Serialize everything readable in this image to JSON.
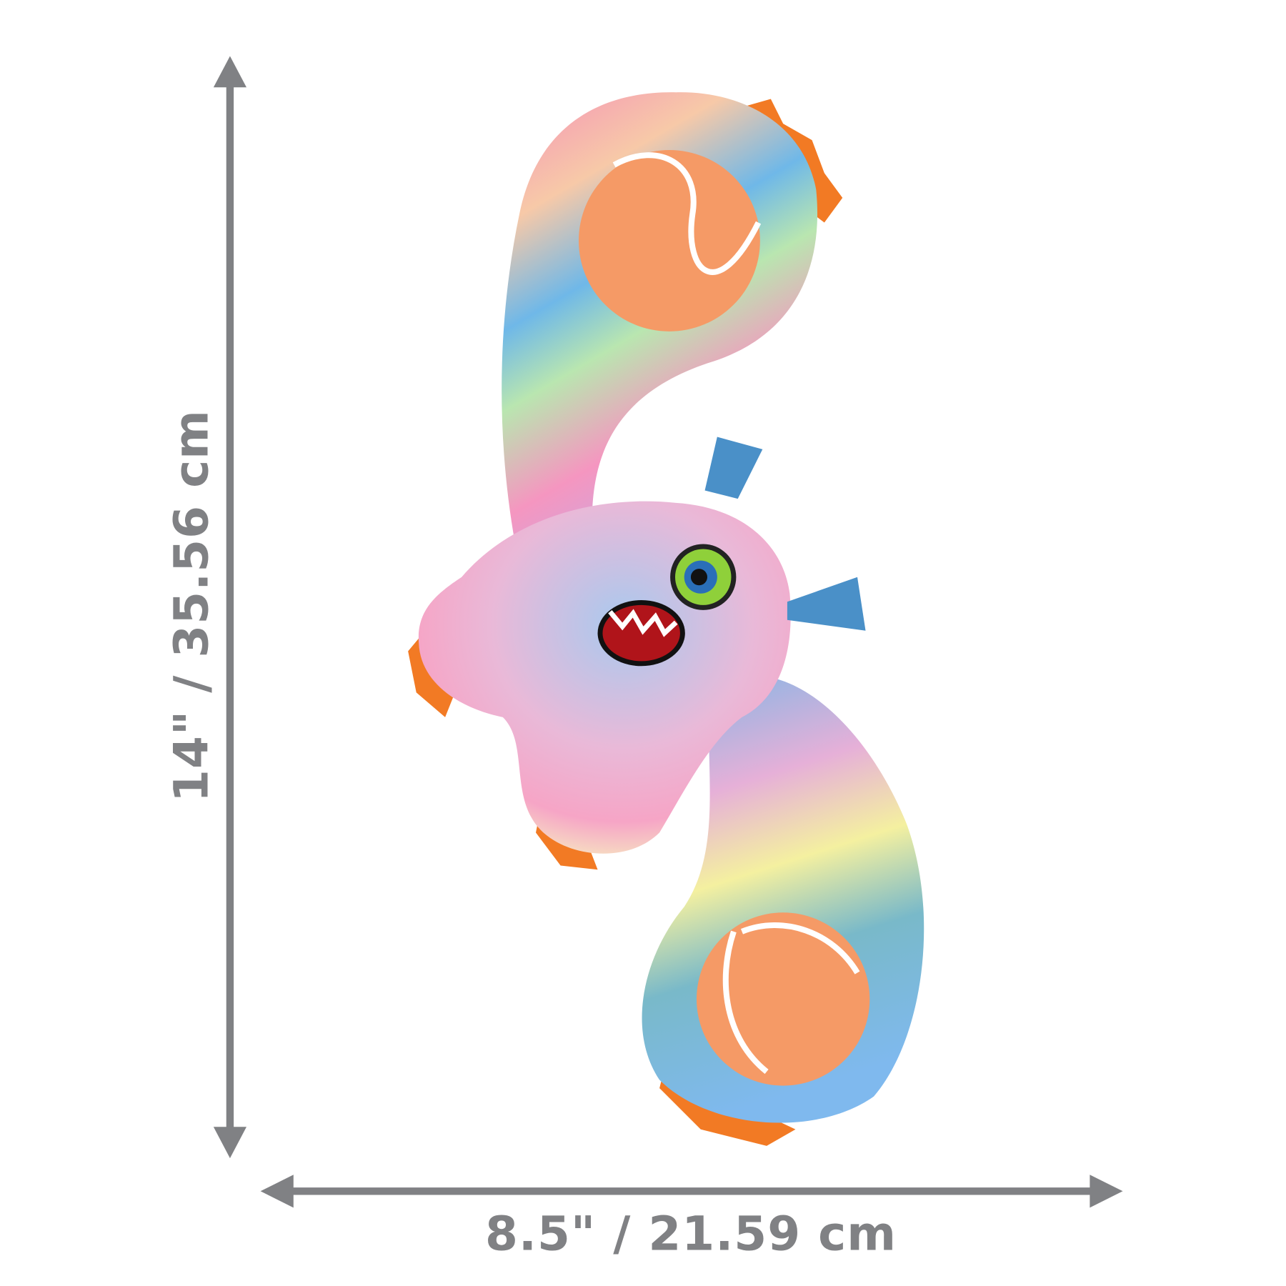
{
  "dimensions": {
    "height_label": "14\" / 35.56 cm",
    "width_label": "8.5\" / 21.59 cm"
  },
  "colors": {
    "arrow": "#808184",
    "ball": "#f59a66",
    "spikes": "#f27a24",
    "antenna": "#4a90c8"
  }
}
